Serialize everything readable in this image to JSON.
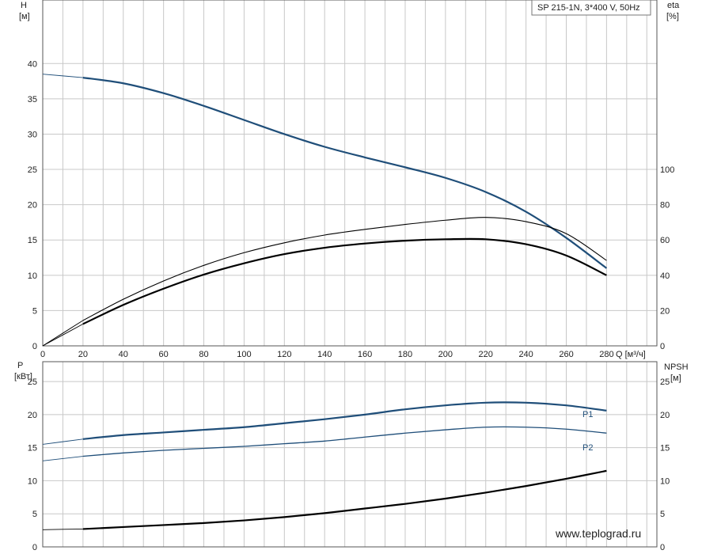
{
  "chart_data": [
    {
      "type": "line",
      "title": "SP 215-1N, 3*400 V, 50Hz",
      "xlabel": "Q [м³/ч]",
      "ylabel_left_name": "H",
      "ylabel_left_unit": "[м]",
      "ylabel_right_name": "eta",
      "ylabel_right_unit": "[%]",
      "xlim": [
        0,
        305
      ],
      "ylim_left": [
        0,
        49
      ],
      "ylim_right": [
        0,
        196
      ],
      "x_ticks": [
        "0",
        "20",
        "40",
        "60",
        "80",
        "100",
        "120",
        "140",
        "160",
        "180",
        "200",
        "220",
        "240",
        "260",
        "280"
      ],
      "y_left_ticks": [
        "0",
        "5",
        "10",
        "15",
        "20",
        "25",
        "30",
        "35",
        "40"
      ],
      "y_right_ticks": [
        "0",
        "20",
        "40",
        "60",
        "80",
        "100"
      ],
      "grid": true,
      "series": [
        {
          "axis": "left",
          "color": "#1f4e79",
          "values": [
            [
              0,
              38.5
            ],
            [
              20,
              38.0
            ],
            [
              40,
              37.2
            ],
            [
              60,
              35.8
            ],
            [
              80,
              34.0
            ],
            [
              100,
              32.0
            ],
            [
              120,
              30.0
            ],
            [
              140,
              28.2
            ],
            [
              160,
              26.7
            ],
            [
              180,
              25.3
            ],
            [
              200,
              23.8
            ],
            [
              220,
              21.8
            ],
            [
              240,
              19.0
            ],
            [
              260,
              15.3
            ],
            [
              280,
              11.0
            ]
          ]
        },
        {
          "axis": "right",
          "color": "#000000",
          "values": [
            [
              0,
              0
            ],
            [
              20,
              14.4
            ],
            [
              40,
              26.4
            ],
            [
              60,
              36.8
            ],
            [
              80,
              45.6
            ],
            [
              100,
              52.8
            ],
            [
              120,
              58.4
            ],
            [
              140,
              62.8
            ],
            [
              160,
              66.0
            ],
            [
              180,
              68.8
            ],
            [
              200,
              71.2
            ],
            [
              220,
              72.8
            ],
            [
              240,
              70.4
            ],
            [
              260,
              63.6
            ],
            [
              280,
              48.4
            ]
          ]
        },
        {
          "axis": "right",
          "color": "#000000",
          "values": [
            [
              0,
              0
            ],
            [
              20,
              12.4
            ],
            [
              40,
              23.2
            ],
            [
              60,
              32.4
            ],
            [
              80,
              40.4
            ],
            [
              100,
              46.8
            ],
            [
              120,
              52.0
            ],
            [
              140,
              55.6
            ],
            [
              160,
              58.0
            ],
            [
              180,
              59.6
            ],
            [
              200,
              60.4
            ],
            [
              220,
              60.4
            ],
            [
              240,
              57.6
            ],
            [
              260,
              51.2
            ],
            [
              280,
              40.0
            ]
          ]
        }
      ]
    },
    {
      "type": "line",
      "xlabel": "",
      "ylabel_left_name": "P",
      "ylabel_left_unit": "[кВт]",
      "ylabel_right_name": "NPSH",
      "ylabel_right_unit": "[м]",
      "xlim": [
        0,
        305
      ],
      "ylim_left": [
        0,
        28
      ],
      "ylim_right": [
        0,
        28
      ],
      "y_left_ticks": [
        "0",
        "5",
        "10",
        "15",
        "20",
        "25"
      ],
      "y_right_ticks": [
        "0",
        "5",
        "10",
        "15",
        "20",
        "25"
      ],
      "grid": true,
      "series": [
        {
          "name": "P1",
          "axis": "left",
          "color": "#1f4e79",
          "values": [
            [
              0,
              15.5
            ],
            [
              20,
              16.3
            ],
            [
              40,
              16.9
            ],
            [
              60,
              17.3
            ],
            [
              80,
              17.7
            ],
            [
              100,
              18.1
            ],
            [
              120,
              18.7
            ],
            [
              140,
              19.3
            ],
            [
              160,
              20.0
            ],
            [
              180,
              20.8
            ],
            [
              200,
              21.4
            ],
            [
              220,
              21.8
            ],
            [
              240,
              21.8
            ],
            [
              260,
              21.4
            ],
            [
              280,
              20.6
            ]
          ]
        },
        {
          "name": "P2",
          "axis": "left",
          "color": "#1f4e79",
          "values": [
            [
              0,
              13.0
            ],
            [
              20,
              13.7
            ],
            [
              40,
              14.2
            ],
            [
              60,
              14.6
            ],
            [
              80,
              14.9
            ],
            [
              100,
              15.2
            ],
            [
              120,
              15.6
            ],
            [
              140,
              16.0
            ],
            [
              160,
              16.6
            ],
            [
              180,
              17.2
            ],
            [
              200,
              17.7
            ],
            [
              220,
              18.1
            ],
            [
              240,
              18.1
            ],
            [
              260,
              17.8
            ],
            [
              280,
              17.2
            ]
          ]
        },
        {
          "axis": "right",
          "color": "#000000",
          "values": [
            [
              0,
              2.6
            ],
            [
              20,
              2.7
            ],
            [
              40,
              3.0
            ],
            [
              60,
              3.3
            ],
            [
              80,
              3.6
            ],
            [
              100,
              4.0
            ],
            [
              120,
              4.5
            ],
            [
              140,
              5.1
            ],
            [
              160,
              5.8
            ],
            [
              180,
              6.5
            ],
            [
              200,
              7.3
            ],
            [
              220,
              8.2
            ],
            [
              240,
              9.2
            ],
            [
              260,
              10.3
            ],
            [
              280,
              11.5
            ]
          ]
        }
      ]
    }
  ],
  "watermark": "www.teplograd.ru"
}
